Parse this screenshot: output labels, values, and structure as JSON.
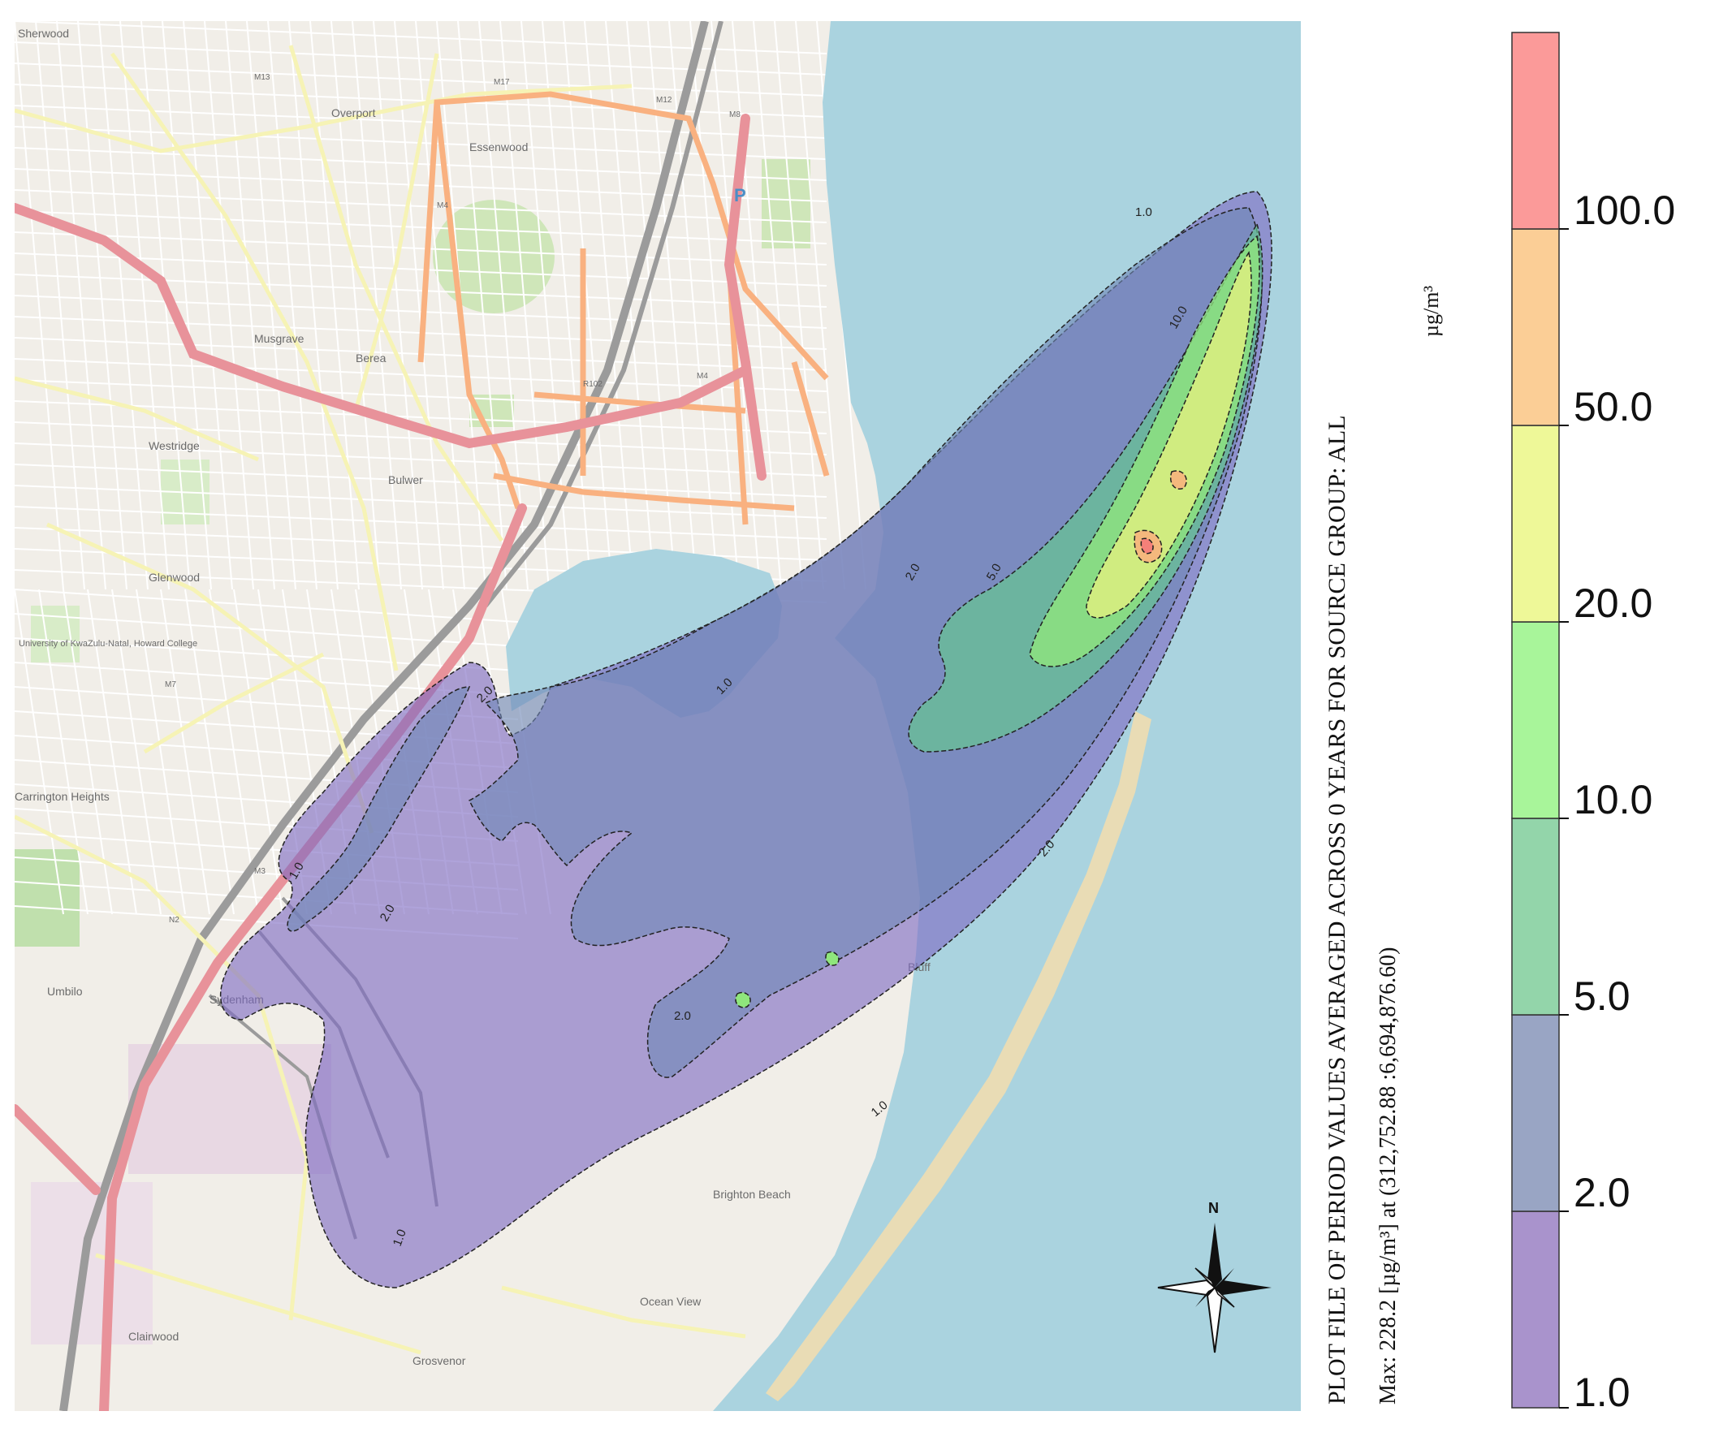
{
  "title": "PLOT FILE OF PERIOD VALUES AVERAGED ACROSS 0 YEARS FOR SOURCE GROUP: ALL",
  "max_note": "Max: 228.2 [µg/m³] at (312,752.88 :6,694,876.60)",
  "unit": "µg/m³",
  "north_label": "N",
  "legend": {
    "thresholds": [
      "1.0",
      "2.0",
      "5.0",
      "10.0",
      "20.0",
      "50.0",
      "100.0"
    ],
    "bands": [
      {
        "from": "1.0",
        "to": "2.0",
        "color": "#a993cc"
      },
      {
        "from": "2.0",
        "to": "5.0",
        "color": "#99a5c4"
      },
      {
        "from": "5.0",
        "to": "10.0",
        "color": "#93d5aa"
      },
      {
        "from": "10.0",
        "to": "20.0",
        "color": "#a8f59a"
      },
      {
        "from": "20.0",
        "to": "50.0",
        "color": "#eef898"
      },
      {
        "from": "50.0",
        "to": "100.0",
        "color": "#fbce96"
      },
      {
        "from": "100.0",
        "to": "",
        "color": "#fb9a99"
      }
    ]
  },
  "contour_labels": [
    "1.0",
    "2.0",
    "5.0",
    "10.0"
  ],
  "place_names": [
    "Sherwood",
    "Overport",
    "Essenwood",
    "Musgrave",
    "Berea",
    "Westridge",
    "Bulwer",
    "Glenwood",
    "University of KwaZulu-Natal, Howard College",
    "Umbilo",
    "Carrington Heights",
    "Sydenham",
    "Bluff",
    "Ocean View",
    "Clairwood",
    "Grosvenor",
    "Brighton Beach"
  ],
  "road_labels": [
    "M13",
    "M17",
    "M12",
    "M8",
    "N2",
    "M4",
    "M7",
    "M3",
    "R102"
  ],
  "colors": {
    "sea": "#aad3df",
    "land": "#f1eee8",
    "motorway": "#e8929a",
    "trunk": "#f9b180",
    "secondary": "#f6f3b5",
    "park": "#c8e6b4"
  }
}
